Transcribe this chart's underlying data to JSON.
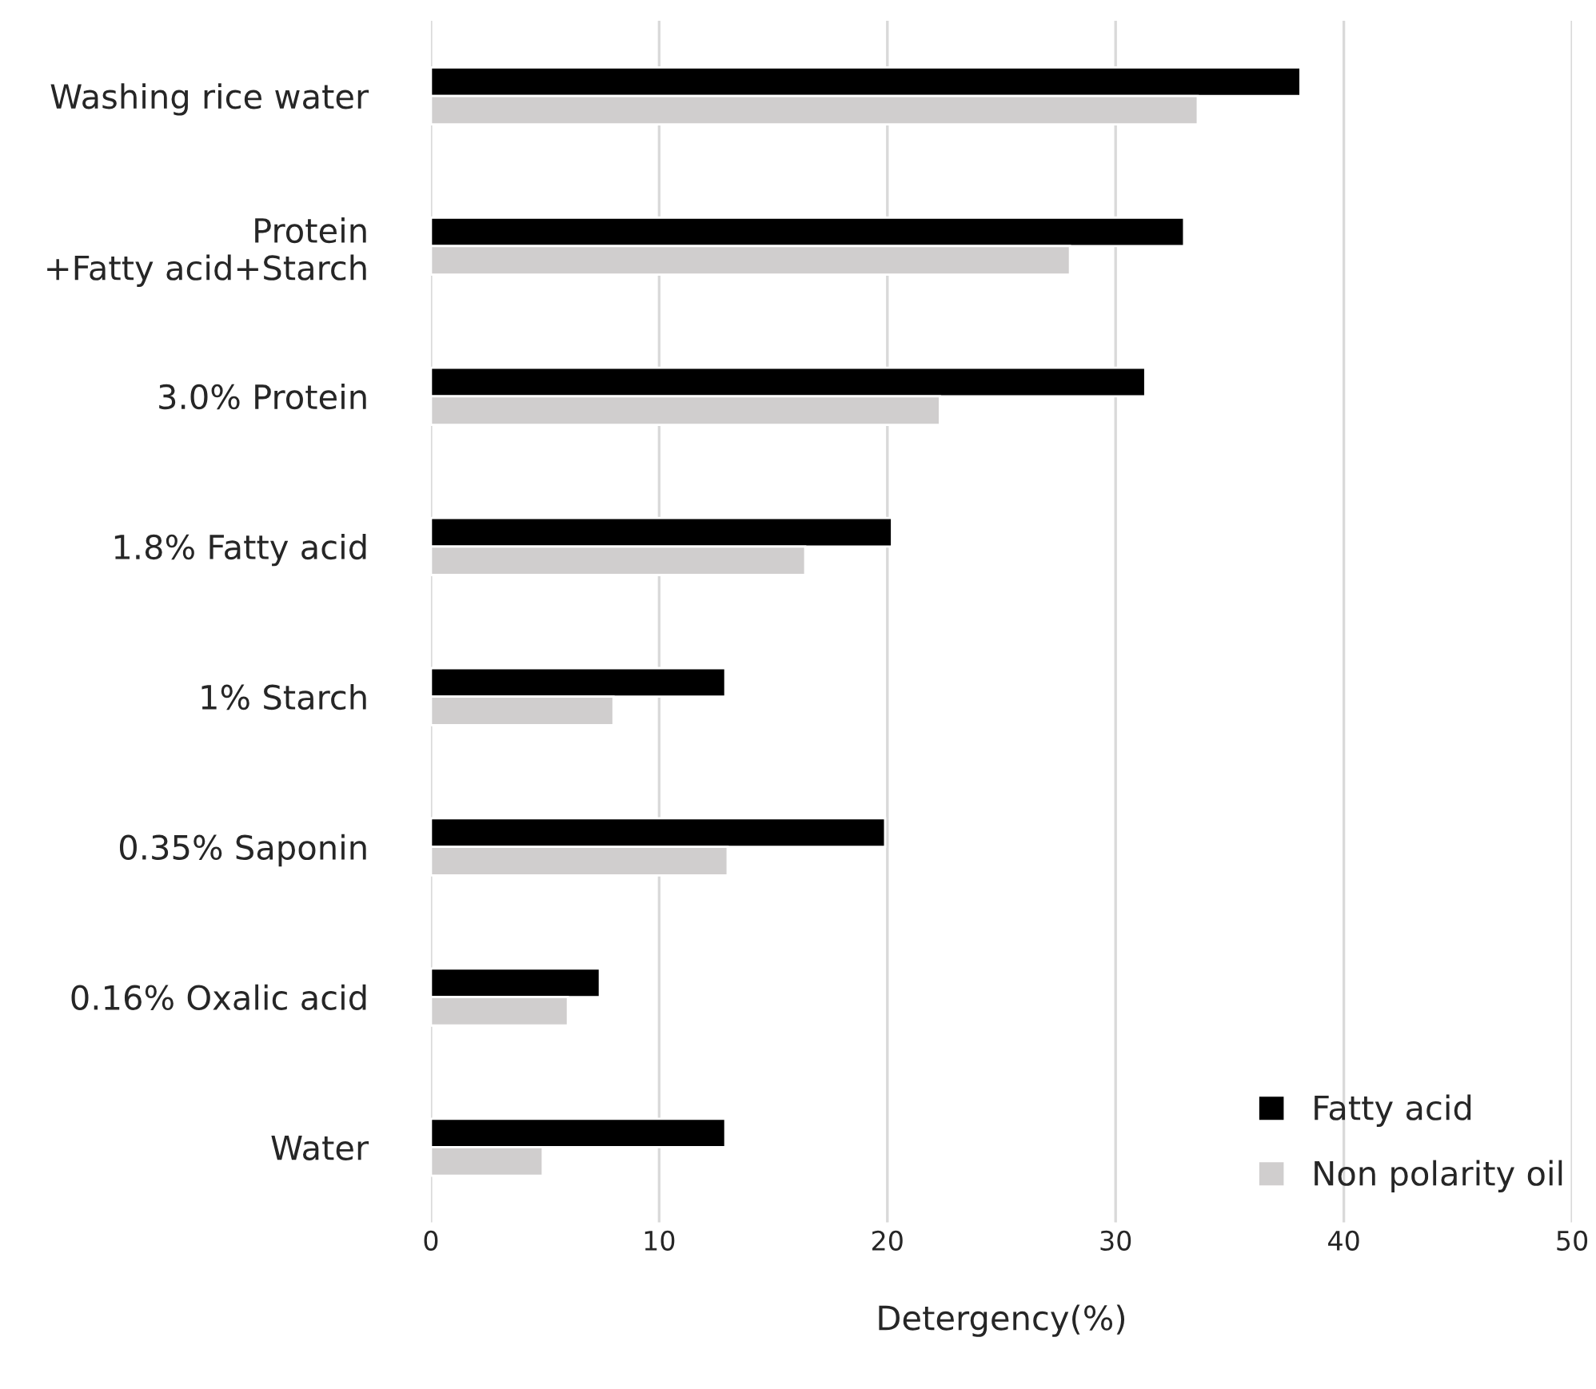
{
  "chart_data": {
    "type": "bar",
    "orientation": "horizontal",
    "xlabel": "Detergency(%)",
    "categories": [
      "Washing rice water",
      "Protein\n+Fatty acid+Starch",
      "3.0% Protein",
      "1.8% Fatty acid",
      "1% Starch",
      "0.35% Saponin",
      "0.16% Oxalic acid",
      "Water"
    ],
    "series": [
      {
        "name": "Fatty acid",
        "color": "#000000",
        "values": [
          38.1,
          33.0,
          31.3,
          20.2,
          12.9,
          19.9,
          7.4,
          12.9
        ]
      },
      {
        "name": "Non polarity oil",
        "color": "#d0cece",
        "values": [
          33.6,
          28.0,
          22.3,
          16.4,
          8.0,
          13.0,
          6.0,
          4.9
        ]
      }
    ],
    "xlim": [
      0,
      50
    ],
    "xticks": [
      0,
      10,
      20,
      30,
      40,
      50
    ],
    "grid": "x",
    "legend": "bottom right"
  }
}
